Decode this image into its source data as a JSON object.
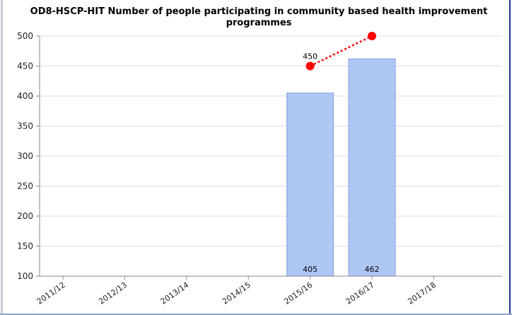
{
  "chart_data": {
    "type": "bar",
    "title_line1": "OD8-HSCP-HIT Number of people participating in community based health improvement",
    "title_line2": "programmes",
    "categories": [
      "2011/12",
      "2012/13",
      "2013/14",
      "2014/15",
      "2015/16",
      "2016/17",
      "2017/18"
    ],
    "series": [
      {
        "type": "bar",
        "values": [
          null,
          null,
          null,
          null,
          405,
          462,
          null
        ],
        "labels": [
          "",
          "",
          "",
          "",
          "405",
          "462",
          ""
        ],
        "color": "#aec6f4",
        "stroke": "#7fa0df"
      },
      {
        "type": "line",
        "values": [
          null,
          null,
          null,
          null,
          450,
          500,
          null
        ],
        "labels": [
          "",
          "",
          "",
          "",
          "450",
          "",
          ""
        ],
        "color": "#ff0000",
        "style": "dotted"
      }
    ],
    "ylim": [
      100,
      500
    ],
    "yticks": [
      100,
      150,
      200,
      250,
      300,
      350,
      400,
      450,
      500
    ],
    "grid": true
  }
}
